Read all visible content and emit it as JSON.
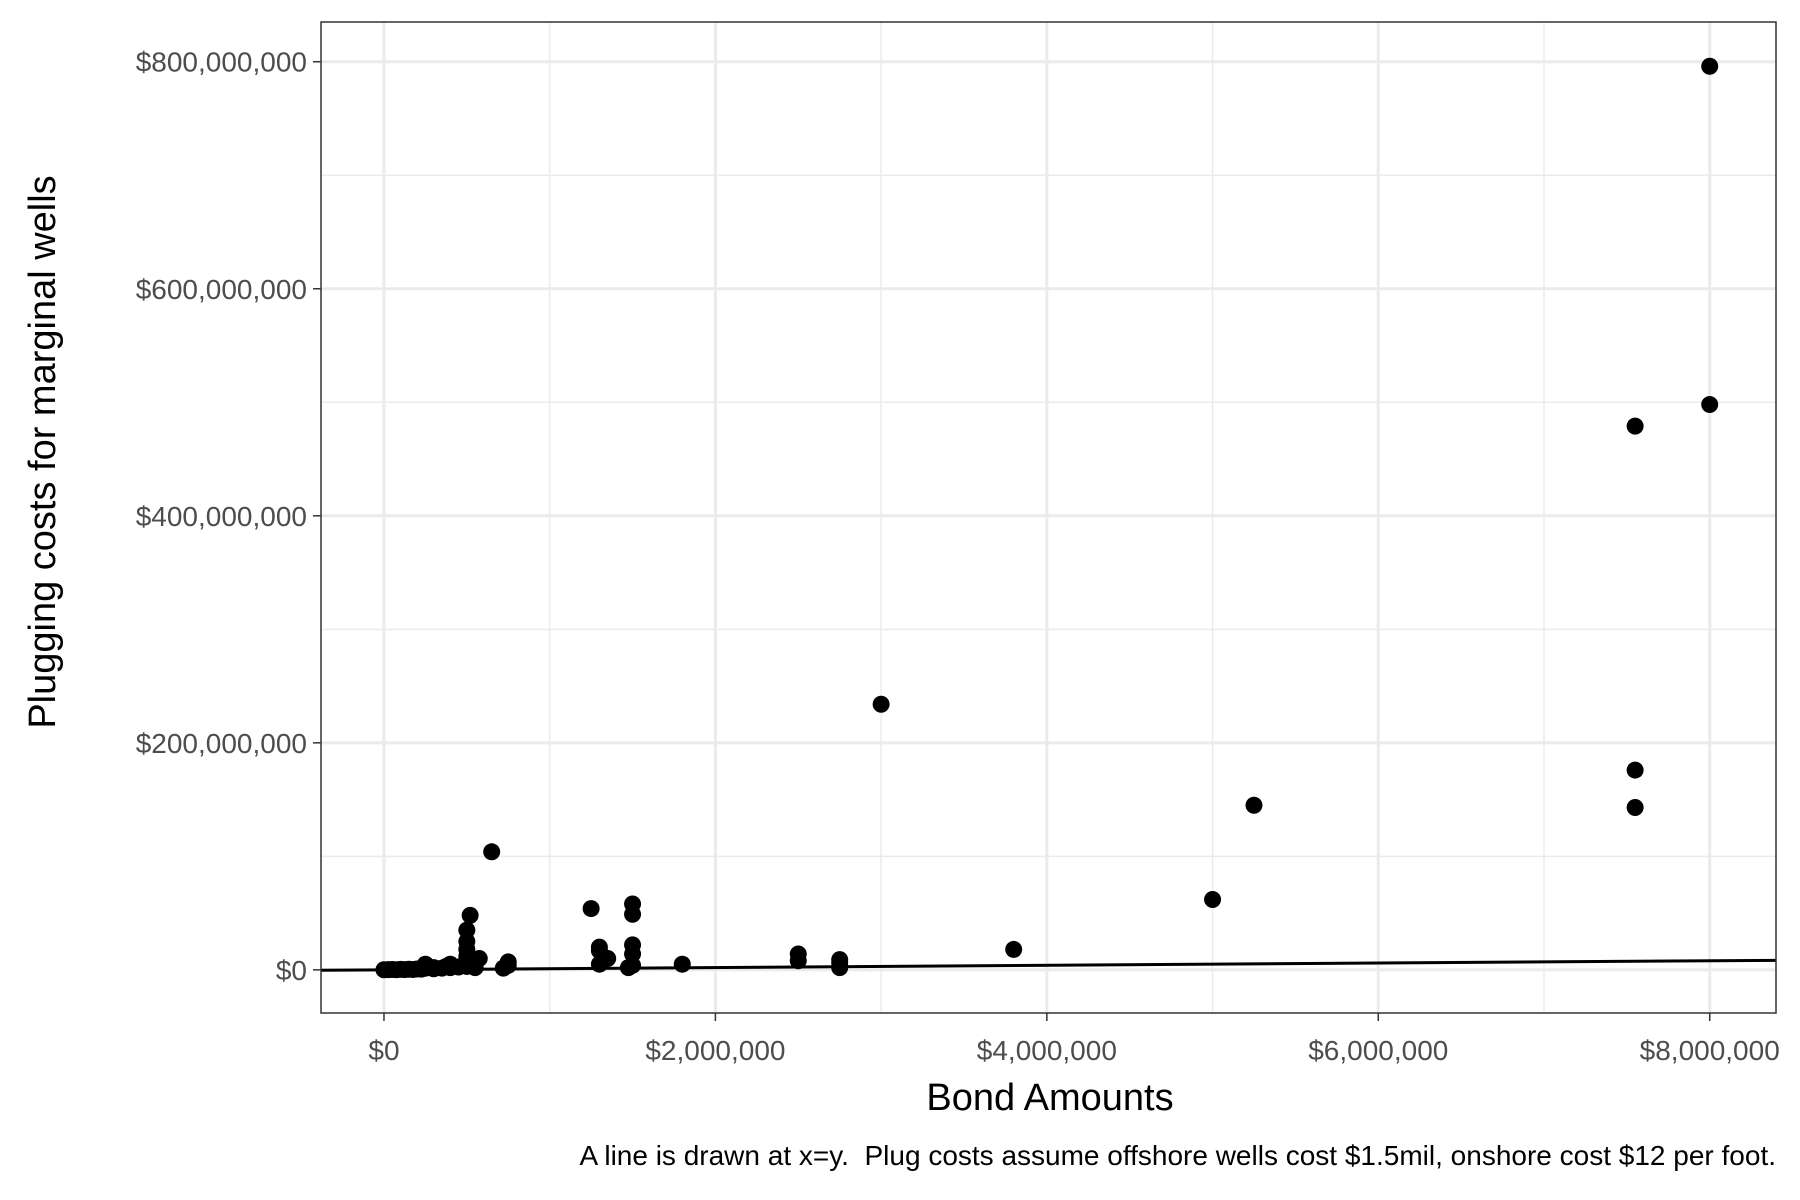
{
  "chart_data": {
    "type": "scatter",
    "title": "",
    "xlabel": "Bond Amounts",
    "ylabel": "Plugging costs for marginal wells",
    "caption": "A line is drawn at x=y.  Plug costs assume offshore wells cost $1.5mil, onshore cost $12 per foot.",
    "xlim": [
      -380000,
      8400000
    ],
    "ylim": [
      -38000000,
      835000000
    ],
    "x_ticks": [
      0,
      2000000,
      4000000,
      6000000,
      8000000
    ],
    "x_tick_labels": [
      "$0",
      "$2,000,000",
      "$4,000,000",
      "$6,000,000",
      "$8,000,000"
    ],
    "y_ticks": [
      0,
      200000000,
      400000000,
      600000000,
      800000000
    ],
    "y_tick_labels": [
      "$0",
      "$200,000,000",
      "$400,000,000",
      "$600,000,000",
      "$800,000,000"
    ],
    "grid": true,
    "reference_line": "x=y",
    "colors": {
      "points": "#000000",
      "grid": "#ebebeb",
      "panel_border": "#333333",
      "line": "#000000"
    },
    "points": [
      [
        0,
        100000
      ],
      [
        25000,
        200000
      ],
      [
        50000,
        300000
      ],
      [
        75000,
        150000
      ],
      [
        100000,
        400000
      ],
      [
        125000,
        250000
      ],
      [
        150000,
        500000
      ],
      [
        175000,
        300000
      ],
      [
        200000,
        800000
      ],
      [
        225000,
        600000
      ],
      [
        250000,
        1500000
      ],
      [
        250000,
        3000000
      ],
      [
        250000,
        5000000
      ],
      [
        300000,
        1000000
      ],
      [
        300000,
        2000000
      ],
      [
        350000,
        1500000
      ],
      [
        375000,
        3000000
      ],
      [
        400000,
        2000000
      ],
      [
        400000,
        5000000
      ],
      [
        450000,
        2500000
      ],
      [
        500000,
        3000000
      ],
      [
        500000,
        8000000
      ],
      [
        500000,
        12000000
      ],
      [
        500000,
        18000000
      ],
      [
        500000,
        25000000
      ],
      [
        500000,
        35000000
      ],
      [
        520000,
        48000000
      ],
      [
        550000,
        5000000
      ],
      [
        550000,
        2000000
      ],
      [
        575000,
        10000000
      ],
      [
        650000,
        104000000
      ],
      [
        720000,
        1500000
      ],
      [
        750000,
        4000000
      ],
      [
        750000,
        7000000
      ],
      [
        1250000,
        54000000
      ],
      [
        1300000,
        5000000
      ],
      [
        1300000,
        17000000
      ],
      [
        1300000,
        20000000
      ],
      [
        1350000,
        10000000
      ],
      [
        1475000,
        2000000
      ],
      [
        1500000,
        4000000
      ],
      [
        1500000,
        14000000
      ],
      [
        1500000,
        22000000
      ],
      [
        1500000,
        49000000
      ],
      [
        1500000,
        58000000
      ],
      [
        1800000,
        5000000
      ],
      [
        2500000,
        8000000
      ],
      [
        2500000,
        14000000
      ],
      [
        2750000,
        2000000
      ],
      [
        2750000,
        6000000
      ],
      [
        2750000,
        9000000
      ],
      [
        3000000,
        234000000
      ],
      [
        3800000,
        18000000
      ],
      [
        5000000,
        62000000
      ],
      [
        5250000,
        145000000
      ],
      [
        7550000,
        479000000
      ],
      [
        7550000,
        176000000
      ],
      [
        7550000,
        143000000
      ],
      [
        8000000,
        498000000
      ],
      [
        8000000,
        796000000
      ]
    ]
  }
}
